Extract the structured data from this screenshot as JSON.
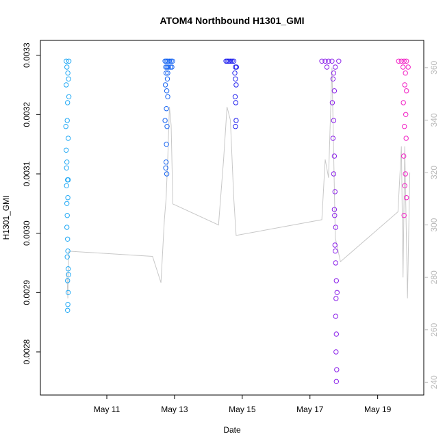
{
  "chart_data": {
    "type": "scatter",
    "title": "ATOM4 Northbound H1301_GMI",
    "xlabel": "Date",
    "ylabel": "H1301_GMI",
    "x_ticks": [
      "May 11",
      "May 13",
      "May 15",
      "May 17",
      "May 19"
    ],
    "x_tick_days": [
      11,
      13,
      15,
      17,
      19
    ],
    "xlim_days": [
      9.2,
      20.2
    ],
    "ylim": [
      0.00274,
      0.00331
    ],
    "y_ticks": [
      0.0028,
      0.0029,
      0.003,
      0.0031,
      0.0032,
      0.0033
    ],
    "y_tick_labels": [
      "0.0028",
      "0.0029",
      "0.0030",
      "0.0031",
      "0.0032",
      "0.0033"
    ],
    "y2_ticks": [
      240,
      260,
      280,
      300,
      320,
      340,
      360
    ],
    "y2_tick_labels": [
      "240",
      "260",
      "280",
      "300",
      "320",
      "340",
      "360"
    ],
    "y2lim": [
      238,
      367
    ],
    "grid": false,
    "legend": "none",
    "series": [
      {
        "color": "#1EA8F5",
        "x_day_range": [
          9.78,
          9.9
        ],
        "points": [
          [
            9.8,
            0.00329
          ],
          [
            9.82,
            0.00328
          ],
          [
            9.85,
            0.00327
          ],
          [
            9.88,
            0.00329
          ],
          [
            9.8,
            0.00325
          ],
          [
            9.84,
            0.00322
          ],
          [
            9.87,
            0.00326
          ],
          [
            9.79,
            0.00318
          ],
          [
            9.83,
            0.00319
          ],
          [
            9.86,
            0.00316
          ],
          [
            9.8,
            0.00314
          ],
          [
            9.82,
            0.00312
          ],
          [
            9.84,
            0.00309
          ],
          [
            9.81,
            0.00308
          ],
          [
            9.85,
            0.00306
          ],
          [
            9.83,
            0.00303
          ],
          [
            9.82,
            0.00301
          ],
          [
            9.84,
            0.00299
          ],
          [
            9.83,
            0.00296
          ],
          [
            9.86,
            0.00294
          ],
          [
            9.84,
            0.00292
          ],
          [
            9.86,
            0.0029
          ],
          [
            9.85,
            0.00288
          ],
          [
            9.84,
            0.00287
          ],
          [
            9.87,
            0.00293
          ],
          [
            9.82,
            0.00305
          ],
          [
            9.81,
            0.00311
          ],
          [
            9.88,
            0.00323
          ],
          [
            9.85,
            0.00297
          ],
          [
            9.86,
            0.00309
          ]
        ]
      },
      {
        "color": "#1463F2",
        "x_day_range": [
          12.7,
          12.95
        ],
        "points": [
          [
            12.72,
            0.00329
          ],
          [
            12.76,
            0.00329
          ],
          [
            12.8,
            0.00329
          ],
          [
            12.85,
            0.00329
          ],
          [
            12.9,
            0.00329
          ],
          [
            12.94,
            0.00329
          ],
          [
            12.74,
            0.00328
          ],
          [
            12.78,
            0.00328
          ],
          [
            12.82,
            0.00328
          ],
          [
            12.88,
            0.00328
          ],
          [
            12.92,
            0.00328
          ],
          [
            12.75,
            0.00327
          ],
          [
            12.8,
            0.00327
          ],
          [
            12.73,
            0.00325
          ],
          [
            12.77,
            0.00324
          ],
          [
            12.8,
            0.00323
          ],
          [
            12.76,
            0.00321
          ],
          [
            12.72,
            0.00319
          ],
          [
            12.78,
            0.00318
          ],
          [
            12.76,
            0.00315
          ],
          [
            12.75,
            0.00312
          ],
          [
            12.77,
            0.0031
          ],
          [
            12.74,
            0.00311
          ],
          [
            12.79,
            0.00326
          ]
        ]
      },
      {
        "color": "#1F1FEF",
        "x_day_range": [
          14.5,
          14.85
        ],
        "points": [
          [
            14.52,
            0.00329
          ],
          [
            14.56,
            0.00329
          ],
          [
            14.6,
            0.00329
          ],
          [
            14.65,
            0.00329
          ],
          [
            14.7,
            0.00329
          ],
          [
            14.75,
            0.00329
          ],
          [
            14.8,
            0.00328
          ],
          [
            14.83,
            0.00328
          ],
          [
            14.78,
            0.00327
          ],
          [
            14.8,
            0.00326
          ],
          [
            14.82,
            0.00325
          ],
          [
            14.79,
            0.00323
          ],
          [
            14.81,
            0.00322
          ],
          [
            14.8,
            0.00318
          ],
          [
            14.82,
            0.00319
          ]
        ]
      },
      {
        "color": "#8A1FEA",
        "x_day_range": [
          17.3,
          17.95
        ],
        "points": [
          [
            17.35,
            0.00329
          ],
          [
            17.45,
            0.00329
          ],
          [
            17.55,
            0.00329
          ],
          [
            17.65,
            0.00329
          ],
          [
            17.75,
            0.00328
          ],
          [
            17.85,
            0.00329
          ],
          [
            17.5,
            0.00328
          ],
          [
            17.7,
            0.00327
          ],
          [
            17.68,
            0.00326
          ],
          [
            17.72,
            0.00324
          ],
          [
            17.66,
            0.00322
          ],
          [
            17.7,
            0.00319
          ],
          [
            17.68,
            0.00316
          ],
          [
            17.72,
            0.00313
          ],
          [
            17.7,
            0.0031
          ],
          [
            17.74,
            0.00307
          ],
          [
            17.72,
            0.00304
          ],
          [
            17.76,
            0.00301
          ],
          [
            17.74,
            0.00298
          ],
          [
            17.76,
            0.00295
          ],
          [
            17.78,
            0.00292
          ],
          [
            17.77,
            0.00289
          ],
          [
            17.76,
            0.00286
          ],
          [
            17.78,
            0.00283
          ],
          [
            17.77,
            0.0028
          ],
          [
            17.79,
            0.00277
          ],
          [
            17.78,
            0.00275
          ],
          [
            17.8,
            0.0029
          ],
          [
            17.75,
            0.00297
          ],
          [
            17.73,
            0.00303
          ]
        ]
      },
      {
        "color": "#F21DC4",
        "x_day_range": [
          19.6,
          19.95
        ],
        "points": [
          [
            19.62,
            0.00329
          ],
          [
            19.7,
            0.00329
          ],
          [
            19.78,
            0.00329
          ],
          [
            19.85,
            0.00329
          ],
          [
            19.9,
            0.00328
          ],
          [
            19.75,
            0.00328
          ],
          [
            19.82,
            0.00327
          ],
          [
            19.8,
            0.00325
          ],
          [
            19.85,
            0.00324
          ],
          [
            19.76,
            0.00322
          ],
          [
            19.83,
            0.0032
          ],
          [
            19.79,
            0.00318
          ],
          [
            19.84,
            0.00316
          ],
          [
            19.77,
            0.00313
          ],
          [
            19.82,
            0.0031
          ],
          [
            19.8,
            0.00308
          ],
          [
            19.85,
            0.00306
          ],
          [
            19.78,
            0.00303
          ]
        ]
      }
    ],
    "secondary_line": {
      "color": "#c8c8c8",
      "points": [
        [
          9.82,
          282
        ],
        [
          9.85,
          272
        ],
        [
          9.88,
          290
        ],
        [
          12.35,
          288
        ],
        [
          12.6,
          278
        ],
        [
          12.7,
          302
        ],
        [
          12.75,
          310
        ],
        [
          12.8,
          325
        ],
        [
          12.85,
          345
        ],
        [
          12.9,
          338
        ],
        [
          12.95,
          308
        ],
        [
          14.3,
          300
        ],
        [
          14.45,
          325
        ],
        [
          14.55,
          345
        ],
        [
          14.65,
          340
        ],
        [
          14.75,
          310
        ],
        [
          14.82,
          296
        ],
        [
          17.35,
          302
        ],
        [
          17.45,
          325
        ],
        [
          17.55,
          318
        ],
        [
          17.65,
          360
        ],
        [
          17.75,
          295
        ],
        [
          17.9,
          286
        ],
        [
          19.6,
          305
        ],
        [
          19.7,
          330
        ],
        [
          19.75,
          280
        ],
        [
          19.8,
          330
        ],
        [
          19.88,
          272
        ],
        [
          19.95,
          320
        ]
      ]
    }
  }
}
